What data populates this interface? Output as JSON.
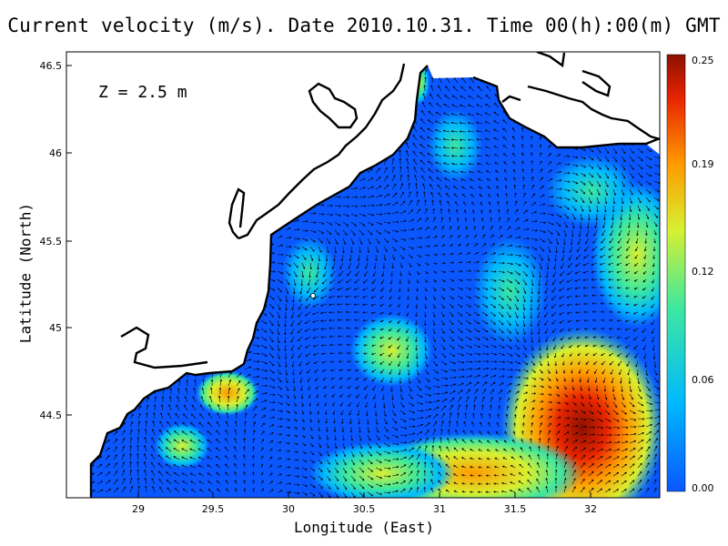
{
  "title": "Current velocity (m/s). Date 2010.10.31. Time 00(h):00(m) GMT",
  "depth_label": "Z = 2.5 m",
  "xlabel": "Longitude (East)",
  "ylabel": "Latitude (North)",
  "x_ticks": [
    "29",
    "29.5",
    "30",
    "30.5",
    "31",
    "31.5",
    "32"
  ],
  "y_ticks": [
    "44.5",
    "45",
    "45.5",
    "46",
    "46.5"
  ],
  "colorbar": {
    "ticks": [
      "0.00",
      "0.06",
      "0.12",
      "0.19",
      "0.25"
    ],
    "range": [
      0,
      0.25
    ],
    "colors": [
      "#0a57ff",
      "#00b8ff",
      "#3de8a0",
      "#d8f030",
      "#ff9a00",
      "#e82400",
      "#8c1000"
    ]
  },
  "chart_data": {
    "type": "heatmap",
    "variable": "Current velocity",
    "units": "m/s",
    "date": "2010.10.31",
    "time": "00(h):00(m) GMT",
    "depth": "2.5 m",
    "xlim": [
      28.55,
      32.45
    ],
    "ylim": [
      44.05,
      46.55
    ],
    "x_ticks": [
      29,
      29.5,
      30,
      30.5,
      31,
      31.5,
      32
    ],
    "y_ticks": [
      44.5,
      45,
      45.5,
      46,
      46.5
    ],
    "value_range": [
      0,
      0.25
    ],
    "high_speed_regions": [
      {
        "area": "south-east",
        "lon": 31.9,
        "lat": 44.4,
        "speed": 0.24
      },
      {
        "area": "south-central",
        "lon": 31.0,
        "lat": 44.2,
        "speed": 0.17
      },
      {
        "area": "east",
        "lon": 32.2,
        "lat": 45.5,
        "speed": 0.14
      },
      {
        "area": "central",
        "lon": 30.6,
        "lat": 45.0,
        "speed": 0.12
      },
      {
        "area": "north-east",
        "lon": 31.8,
        "lat": 45.8,
        "speed": 0.11
      },
      {
        "area": "west-coast",
        "lon": 29.55,
        "lat": 44.65,
        "speed": 0.18
      }
    ]
  }
}
